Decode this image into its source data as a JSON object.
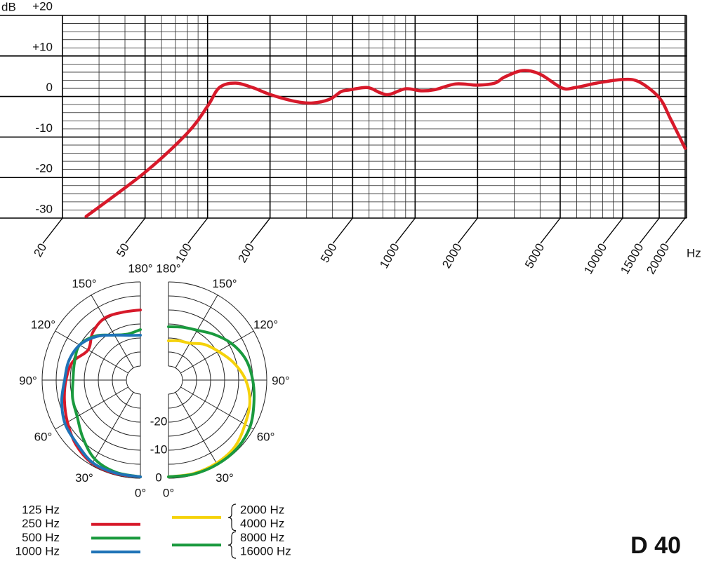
{
  "caption": "D 40",
  "chart_data": [
    {
      "type": "line",
      "ylabel": "dB",
      "xlabel": "Hz",
      "log_x": true,
      "grid": true,
      "xlim": [
        10,
        20000
      ],
      "ylim": [
        -30,
        20
      ],
      "xticks": [
        20,
        50,
        100,
        200,
        500,
        1000,
        2000,
        5000,
        10000,
        15000,
        20000
      ],
      "xminorticks": [
        30,
        40,
        60,
        70,
        80,
        90,
        300,
        400,
        600,
        700,
        800,
        900,
        3000,
        4000,
        6000,
        7000,
        8000,
        9000
      ],
      "yticks": [
        {
          "value": 20,
          "label": "+20"
        },
        {
          "value": 10,
          "label": "+10"
        },
        0,
        -10,
        -20,
        -30
      ],
      "yminorticks": [
        -28,
        -26,
        -24,
        -22,
        -18,
        -16,
        -14,
        -12,
        -8,
        -6,
        -4,
        -2,
        2,
        4,
        6,
        8,
        12,
        14,
        16,
        18
      ],
      "x": [
        26,
        50,
        80,
        100,
        114,
        136,
        165,
        200,
        264,
        320,
        387,
        440,
        480,
        590,
        680,
        750,
        900,
        1070,
        1250,
        1570,
        2000,
        2420,
        2700,
        3300,
        4000,
        5100,
        5900,
        7500,
        10000,
        12000,
        15000,
        17000,
        20000
      ],
      "series": [
        {
          "color": "#d7192a",
          "values": [
            -29.6,
            -18.7,
            -9,
            -2.4,
            2.2,
            3.3,
            2.2,
            0.5,
            -1.2,
            -1.6,
            -0.7,
            1.2,
            1.6,
            2.2,
            0.9,
            0.5,
            1.9,
            1.4,
            1.7,
            3.1,
            2.8,
            3.3,
            4.8,
            6.4,
            5.5,
            2.1,
            2.2,
            3.3,
            4.2,
            3.6,
            -0.3,
            -5.5,
            -12.8
          ]
        }
      ]
    },
    {
      "type": "polar",
      "side": "left",
      "rlim": [
        -35,
        0
      ],
      "rgrid": [
        0,
        -5,
        -10,
        -15,
        -20,
        -25,
        -30
      ],
      "rticks": [
        0,
        -10,
        -20
      ],
      "thetaticks": [
        {
          "value": 0,
          "label": "0°"
        },
        {
          "value": 30,
          "label": "30°"
        },
        {
          "value": 60,
          "label": "60°"
        },
        {
          "value": 90,
          "label": "90°"
        },
        {
          "value": 120,
          "label": "120°"
        },
        {
          "value": 150,
          "label": "150°"
        },
        {
          "value": 180,
          "label": "180°"
        }
      ],
      "theta": [
        0,
        15,
        30,
        45,
        60,
        75,
        90,
        105,
        120,
        135,
        150,
        165,
        180
      ],
      "legend_note": "125 Hz",
      "series": [
        {
          "name": "250 Hz",
          "color": "#d7192a",
          "values": [
            -0.5,
            -0.5,
            -0.7,
            -2.5,
            -5,
            -7,
            -8.5,
            -10,
            -13.5,
            -11,
            -9.5,
            -10,
            -10
          ]
        },
        {
          "name": "500 Hz",
          "color": "#1a9a3e",
          "values": [
            -0.5,
            -1,
            -2.5,
            -6,
            -9,
            -10,
            -11,
            -10.7,
            -10,
            -12.7,
            -16.5,
            -18,
            -17
          ]
        },
        {
          "name": "1000 Hz",
          "color": "#1f73b7",
          "values": [
            -0.5,
            -0.7,
            -1,
            -3,
            -4,
            -6,
            -8,
            -8.6,
            -10,
            -13,
            -16.5,
            -18.5,
            -19
          ]
        }
      ]
    },
    {
      "type": "polar",
      "side": "right",
      "rlim": [
        -35,
        0
      ],
      "rgrid": [
        0,
        -5,
        -10,
        -15,
        -20,
        -25,
        -30
      ],
      "thetaticks": [
        {
          "value": 0,
          "label": "0°"
        },
        {
          "value": 30,
          "label": "30°"
        },
        {
          "value": 60,
          "label": "60°"
        },
        {
          "value": 90,
          "label": "90°"
        },
        {
          "value": 120,
          "label": "120°"
        },
        {
          "value": 150,
          "label": "150°"
        },
        {
          "value": 180,
          "label": "180°"
        }
      ],
      "theta": [
        0,
        15,
        30,
        45,
        60,
        75,
        90,
        105,
        120,
        135,
        150,
        165,
        180
      ],
      "series": [
        {
          "name": [
            "2000 Hz",
            "4000 Hz"
          ],
          "color": "#f5d20a",
          "values": [
            -0.5,
            -0.5,
            -0.8,
            -1.5,
            -3.5,
            -5,
            -7.5,
            -11,
            -14.5,
            -17,
            -19.8,
            -20.5,
            -21
          ]
        },
        {
          "name": [
            "8000 Hz",
            "16000 Hz"
          ],
          "color": "#1a9a3e",
          "values": [
            -0.5,
            -0.3,
            -0.3,
            -0.5,
            -1.5,
            -3.5,
            -5,
            -6.5,
            -9,
            -12,
            -14.5,
            -15.5,
            -16
          ]
        }
      ]
    }
  ]
}
